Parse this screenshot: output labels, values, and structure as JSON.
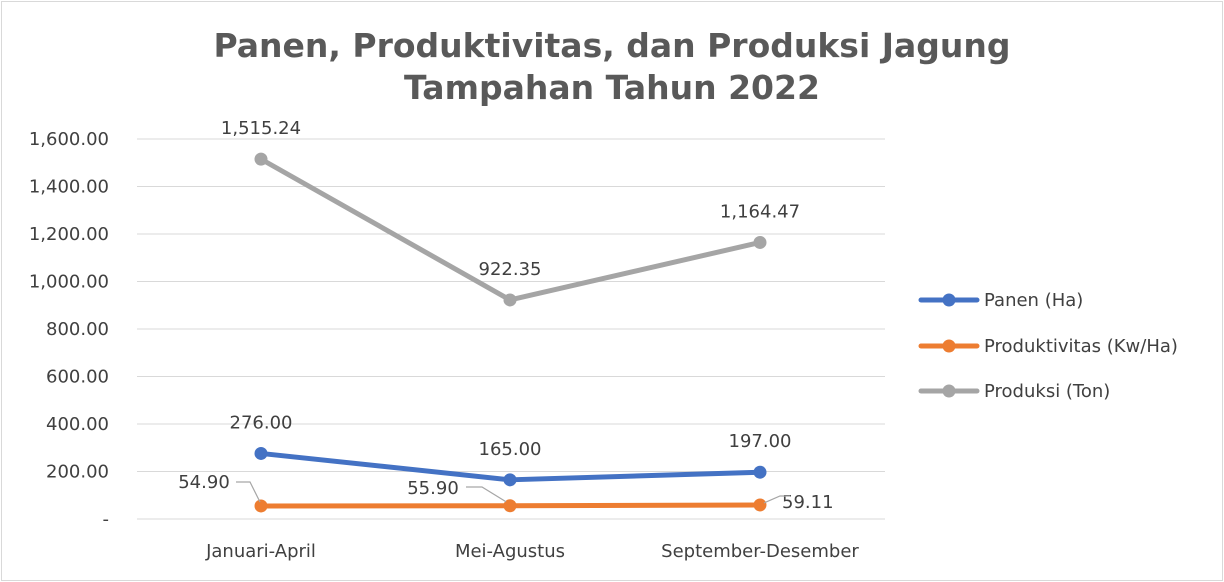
{
  "chart_data": {
    "type": "line",
    "title_lines": [
      "Panen, Produktivitas, dan Produksi Jagung",
      "Tampahan Tahun 2022"
    ],
    "categories": [
      "Januari-April",
      "Mei-Agustus",
      "September-Desember"
    ],
    "series": [
      {
        "name": "Panen (Ha)",
        "color": "#4472c4",
        "values": [
          276.0,
          165.0,
          197.0
        ],
        "labels": [
          "276.00",
          "165.00",
          "197.00"
        ]
      },
      {
        "name": "Produktivitas (Kw/Ha)",
        "color": "#ed7d31",
        "values": [
          54.9,
          55.9,
          59.11
        ],
        "labels": [
          "54.90",
          "55.90",
          "59.11"
        ]
      },
      {
        "name": "Produksi (Ton)",
        "color": "#a5a5a5",
        "values": [
          1515.24,
          922.35,
          1164.47
        ],
        "labels": [
          "1,515.24",
          "922.35",
          "1,164.47"
        ]
      }
    ],
    "ylim": [
      0,
      1600
    ],
    "y_ticks": [
      0,
      200,
      400,
      600,
      800,
      1000,
      1200,
      1400,
      1600
    ],
    "y_tick_labels": [
      "-",
      "200.00",
      "400.00",
      "600.00",
      "800.00",
      "1,000.00",
      "1,200.00",
      "1,400.00",
      "1,600.00"
    ],
    "grid": true,
    "legend_position": "right",
    "colors": {
      "gridline": "#d9d9d9",
      "title": "#595959",
      "text": "#404040",
      "leader": "#a6a6a6"
    }
  }
}
